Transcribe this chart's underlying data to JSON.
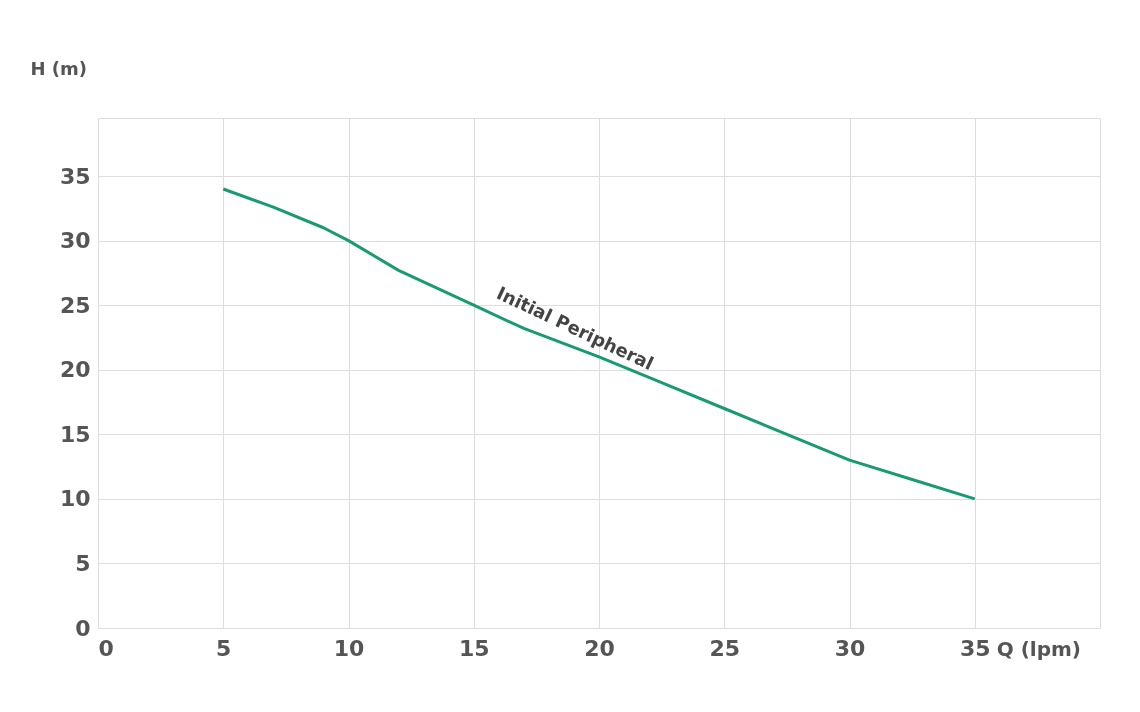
{
  "chart_data": {
    "type": "line",
    "xlabel": "Q (lpm)",
    "ylabel": "H (m)",
    "x": [
      5,
      7,
      9,
      10,
      12,
      15,
      17,
      20,
      22.5,
      25,
      27.5,
      30,
      32.5,
      35
    ],
    "series": [
      {
        "name": "Initial Peripheral",
        "color": "#1a9a72",
        "values": [
          34,
          32.6,
          31,
          30,
          27.7,
          25,
          23.2,
          21,
          19,
          17,
          15,
          13,
          11.5,
          10
        ]
      }
    ],
    "xlim": [
      0,
      40
    ],
    "ylim": [
      0,
      39.5
    ],
    "xticks": [
      0,
      5,
      10,
      15,
      20,
      25,
      30,
      35
    ],
    "yticks": [
      0,
      5,
      10,
      15,
      20,
      25,
      30,
      35
    ],
    "grid": true,
    "marker": "none",
    "line_style": "solid"
  }
}
